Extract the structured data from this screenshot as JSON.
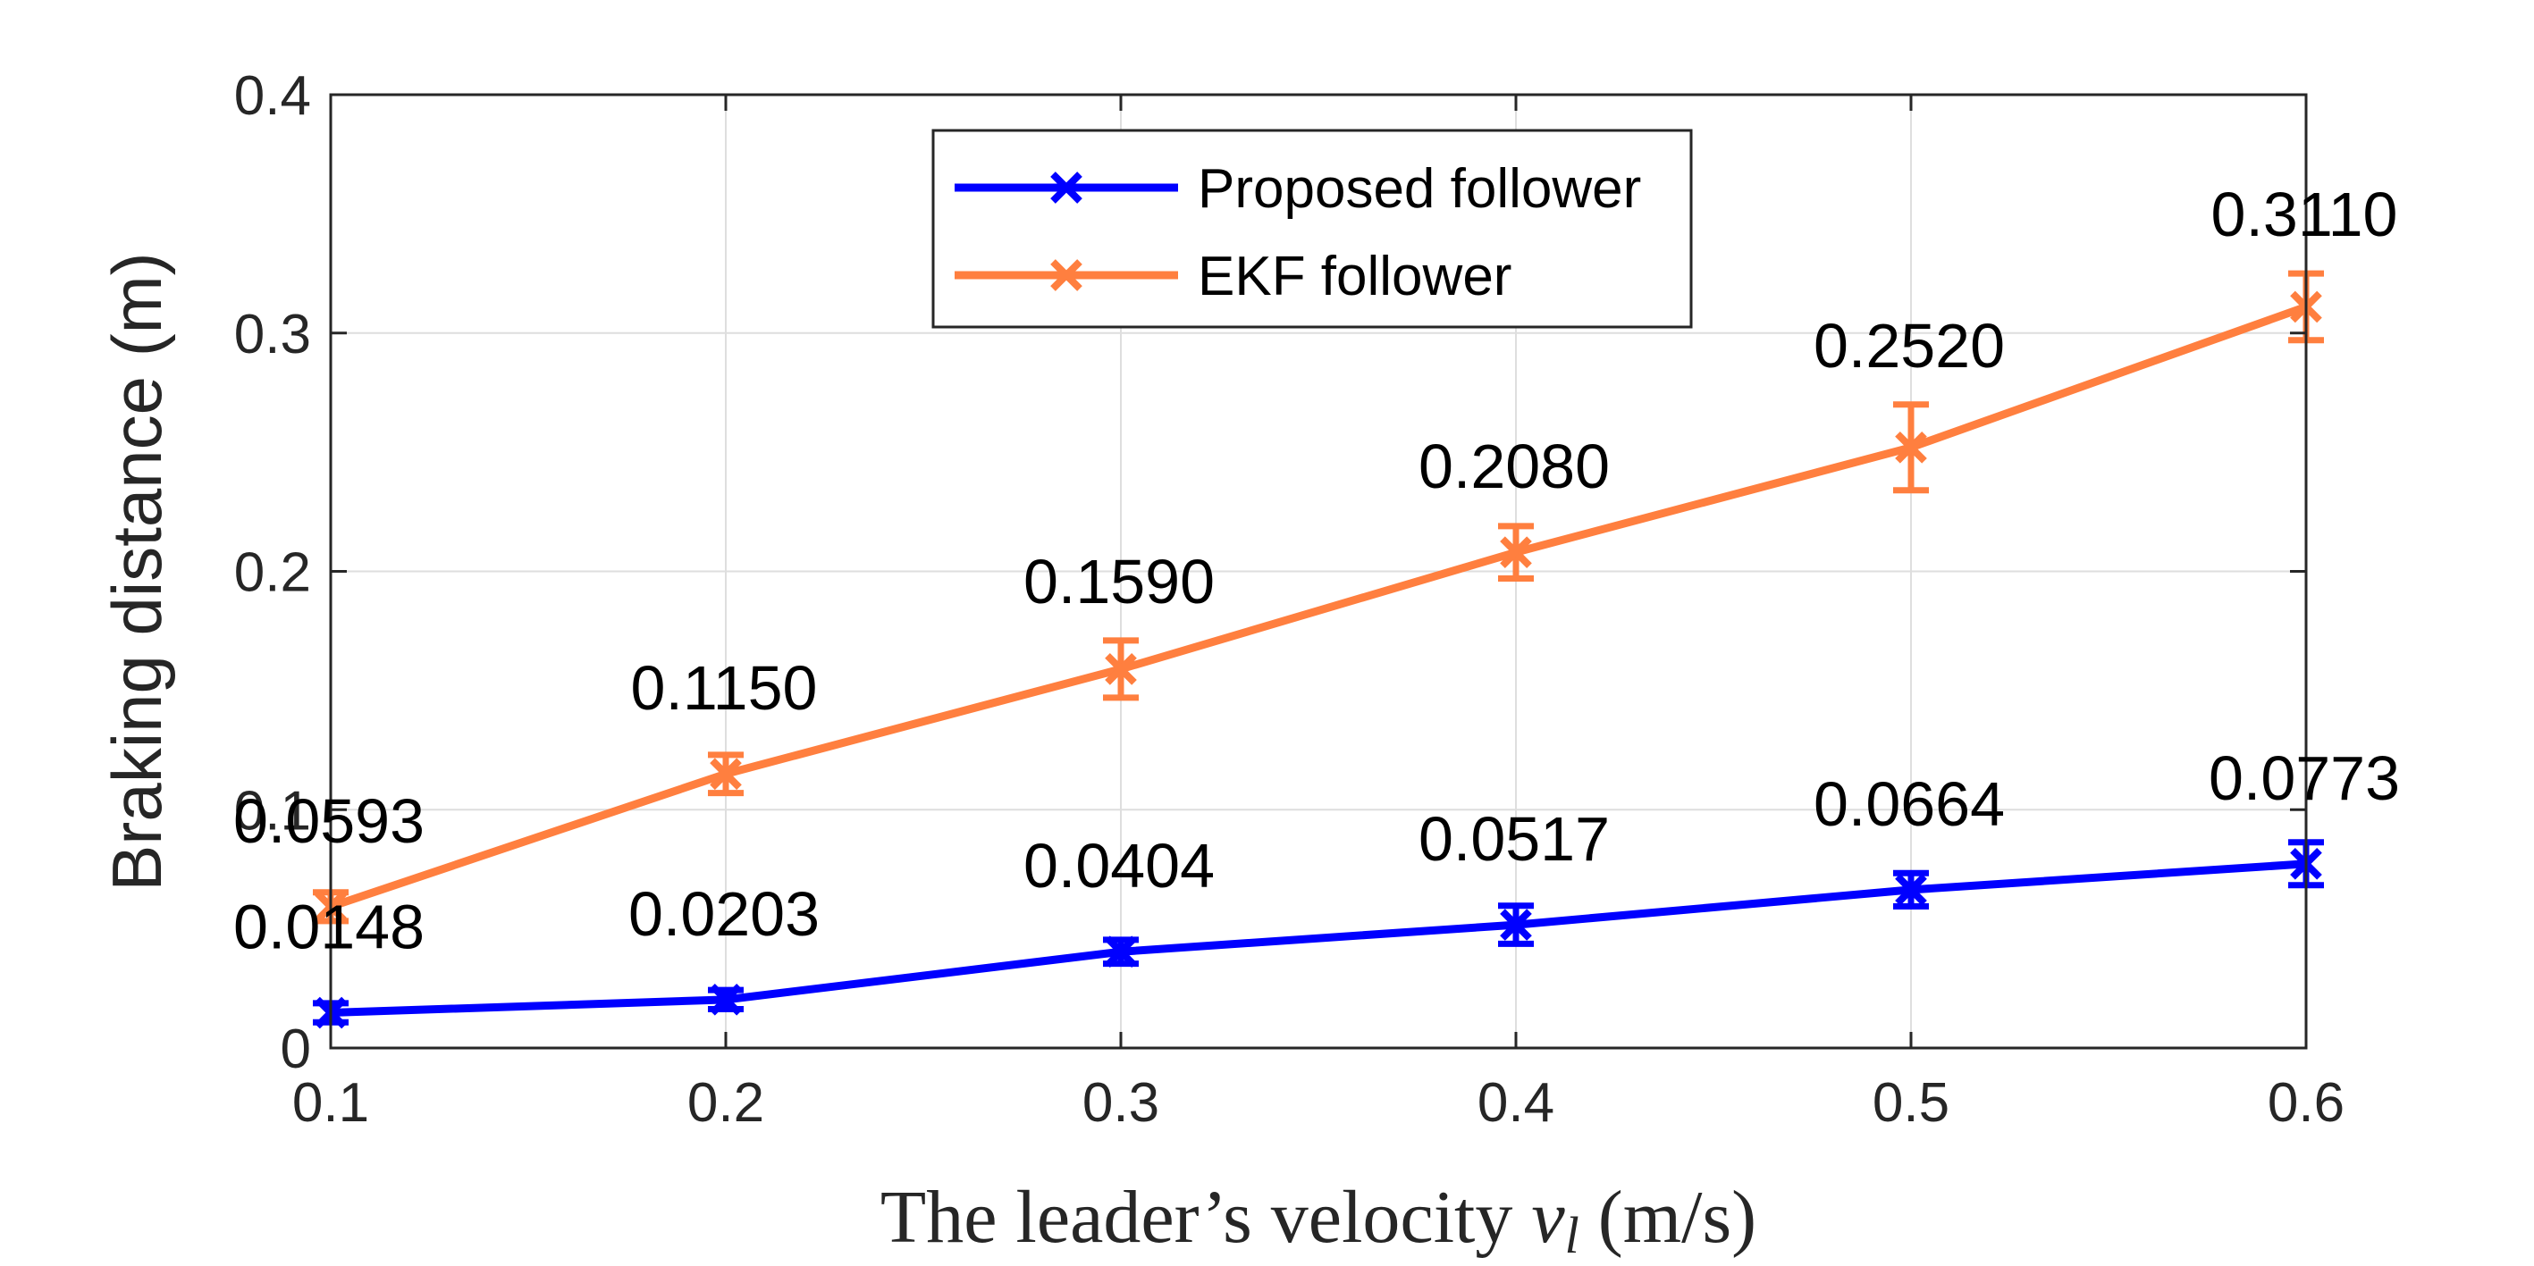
{
  "chart_data": {
    "type": "line",
    "title": "",
    "xlabel_prefix": "The leader’s velocity ",
    "xlabel_var": "v",
    "xlabel_sub": "l",
    "xlabel_suffix": " (m/s)",
    "ylabel": "Braking distance (m)",
    "xlim": [
      0.1,
      0.6
    ],
    "ylim": [
      0,
      0.4
    ],
    "xticks": [
      "0.1",
      "0.2",
      "0.3",
      "0.4",
      "0.5",
      "0.6"
    ],
    "yticks": [
      "0",
      "0.1",
      "0.2",
      "0.3",
      "0.4"
    ],
    "grid": true,
    "legend_position": "top-center",
    "x": [
      0.1,
      0.2,
      0.3,
      0.4,
      0.5,
      0.6
    ],
    "series": [
      {
        "name": "Proposed follower",
        "color": "#0000ff",
        "marker": "x",
        "values": [
          0.0148,
          0.0203,
          0.0404,
          0.0517,
          0.0664,
          0.0773
        ],
        "error": [
          0.004,
          0.004,
          0.005,
          0.008,
          0.007,
          0.009
        ],
        "labels": [
          "0.0148",
          "0.0203",
          "0.0404",
          "0.0517",
          "0.0664",
          "0.0773"
        ]
      },
      {
        "name": "EKF follower",
        "color": "#ff7f3f",
        "marker": "x",
        "values": [
          0.0593,
          0.115,
          0.159,
          0.208,
          0.252,
          0.311
        ],
        "error": [
          0.006,
          0.008,
          0.012,
          0.011,
          0.018,
          0.014
        ],
        "labels": [
          "0.0593",
          "0.1150",
          "0.1590",
          "0.2080",
          "0.2520",
          "0.3110"
        ]
      }
    ]
  }
}
